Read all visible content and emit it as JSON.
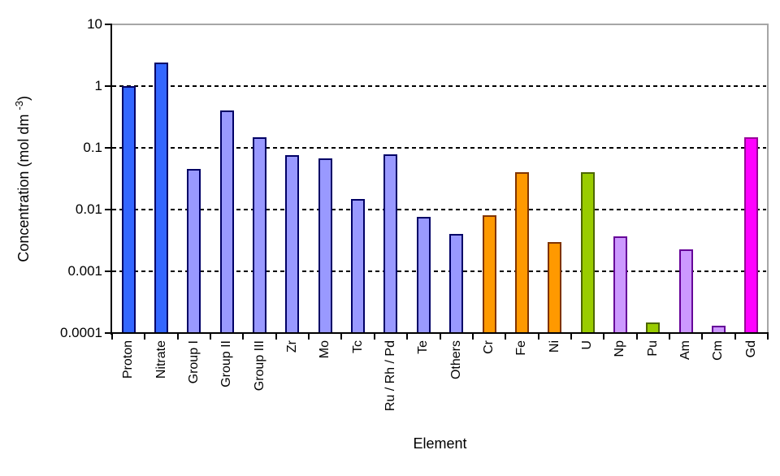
{
  "chart_data": {
    "type": "bar",
    "title": "",
    "xlabel": "Element",
    "ylabel_plain": "Concentration (mol dm -3)",
    "ylabel_parts": {
      "prefix": "Concentration (mol dm ",
      "superscript": "-3",
      "suffix": ")"
    },
    "yscale": "log",
    "ylim": [
      0.0001,
      10
    ],
    "yticks": [
      {
        "label": "10",
        "value": 10
      },
      {
        "label": "1",
        "value": 1
      },
      {
        "label": "0.1",
        "value": 0.1
      },
      {
        "label": "0.01",
        "value": 0.01
      },
      {
        "label": "0.001",
        "value": 0.001
      },
      {
        "label": "0.0001",
        "value": 0.0001
      }
    ],
    "grid": {
      "horizontal": true,
      "style": "dashed",
      "at_values": [
        1,
        0.1,
        0.01,
        0.001
      ]
    },
    "legend": "none",
    "categories": [
      "Proton",
      "Nitrate",
      "Group I",
      "Group II",
      "Group III",
      "Zr",
      "Mo",
      "Tc",
      "Ru / Rh / Pd",
      "Te",
      "Others",
      "Cr",
      "Fe",
      "Ni",
      "U",
      "Np",
      "Pu",
      "Am",
      "Cm",
      "Gd"
    ],
    "values": [
      1.0,
      2.4,
      0.045,
      0.4,
      0.15,
      0.077,
      0.068,
      0.015,
      0.078,
      0.0075,
      0.004,
      0.008,
      0.04,
      0.003,
      0.04,
      0.0037,
      0.00015,
      0.0023,
      0.00013,
      0.15
    ],
    "bar_fill_colors": [
      "#3366FF",
      "#3366FF",
      "#9999FF",
      "#9999FF",
      "#9999FF",
      "#9999FF",
      "#9999FF",
      "#9999FF",
      "#9999FF",
      "#9999FF",
      "#9999FF",
      "#FF9900",
      "#FF9900",
      "#FF9900",
      "#99CC00",
      "#CC99FF",
      "#99CC00",
      "#CC99FF",
      "#CC99FF",
      "#FF00FF"
    ],
    "bar_border_colors": [
      "#000066",
      "#000066",
      "#000066",
      "#000066",
      "#000066",
      "#000066",
      "#000066",
      "#000066",
      "#000066",
      "#000066",
      "#000066",
      "#803300",
      "#803300",
      "#803300",
      "#4C6600",
      "#660099",
      "#4C6600",
      "#660099",
      "#660099",
      "#990099"
    ],
    "color_groups": {
      "blue": {
        "fill": "#3366FF",
        "border": "#000066",
        "bars": [
          "Proton",
          "Nitrate"
        ]
      },
      "periwinkle": {
        "fill": "#9999FF",
        "border": "#000066",
        "bars": [
          "Group I",
          "Group II",
          "Group III",
          "Zr",
          "Mo",
          "Tc",
          "Ru / Rh / Pd",
          "Te",
          "Others"
        ]
      },
      "orange": {
        "fill": "#FF9900",
        "border": "#803300",
        "bars": [
          "Cr",
          "Fe",
          "Ni"
        ]
      },
      "green": {
        "fill": "#99CC00",
        "border": "#4C6600",
        "bars": [
          "U",
          "Pu"
        ]
      },
      "lilac": {
        "fill": "#CC99FF",
        "border": "#660099",
        "bars": [
          "Np",
          "Am",
          "Cm"
        ]
      },
      "magenta": {
        "fill": "#FF00FF",
        "border": "#990099",
        "bars": [
          "Gd"
        ]
      }
    },
    "axis_colors": {
      "axis_line": "#000000",
      "plot_border": "#A6A6A6",
      "gridline": "#000000"
    }
  }
}
